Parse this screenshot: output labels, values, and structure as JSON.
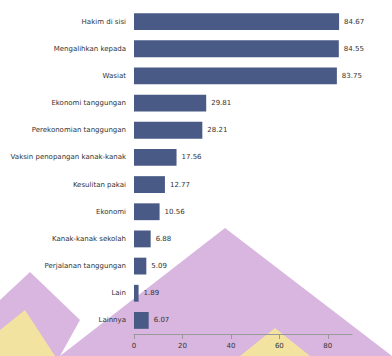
{
  "chart_data": {
    "type": "bar",
    "orientation": "horizontal",
    "categories": [
      "Hakim di sisi",
      "Mengalihkan kepada",
      "Wasiat",
      "Ekonomi tanggungan",
      "Perekonomian tanggungan",
      "Vaksin penopangan kanak-kanak",
      "Kesulitan pakai",
      "Ekonomi",
      "Kanak-kanak sekolah",
      "Perjalanan tanggungan",
      "Lain",
      "Lainnya"
    ],
    "values": [
      84.67,
      84.55,
      83.75,
      29.81,
      28.21,
      17.56,
      12.77,
      10.56,
      6.88,
      5.09,
      1.89,
      6.07
    ],
    "color": "#4a5a86",
    "xlim": [
      0,
      90
    ],
    "xticks": [
      0,
      20,
      40,
      60,
      80
    ],
    "grid": false,
    "data_labels": true
  }
}
